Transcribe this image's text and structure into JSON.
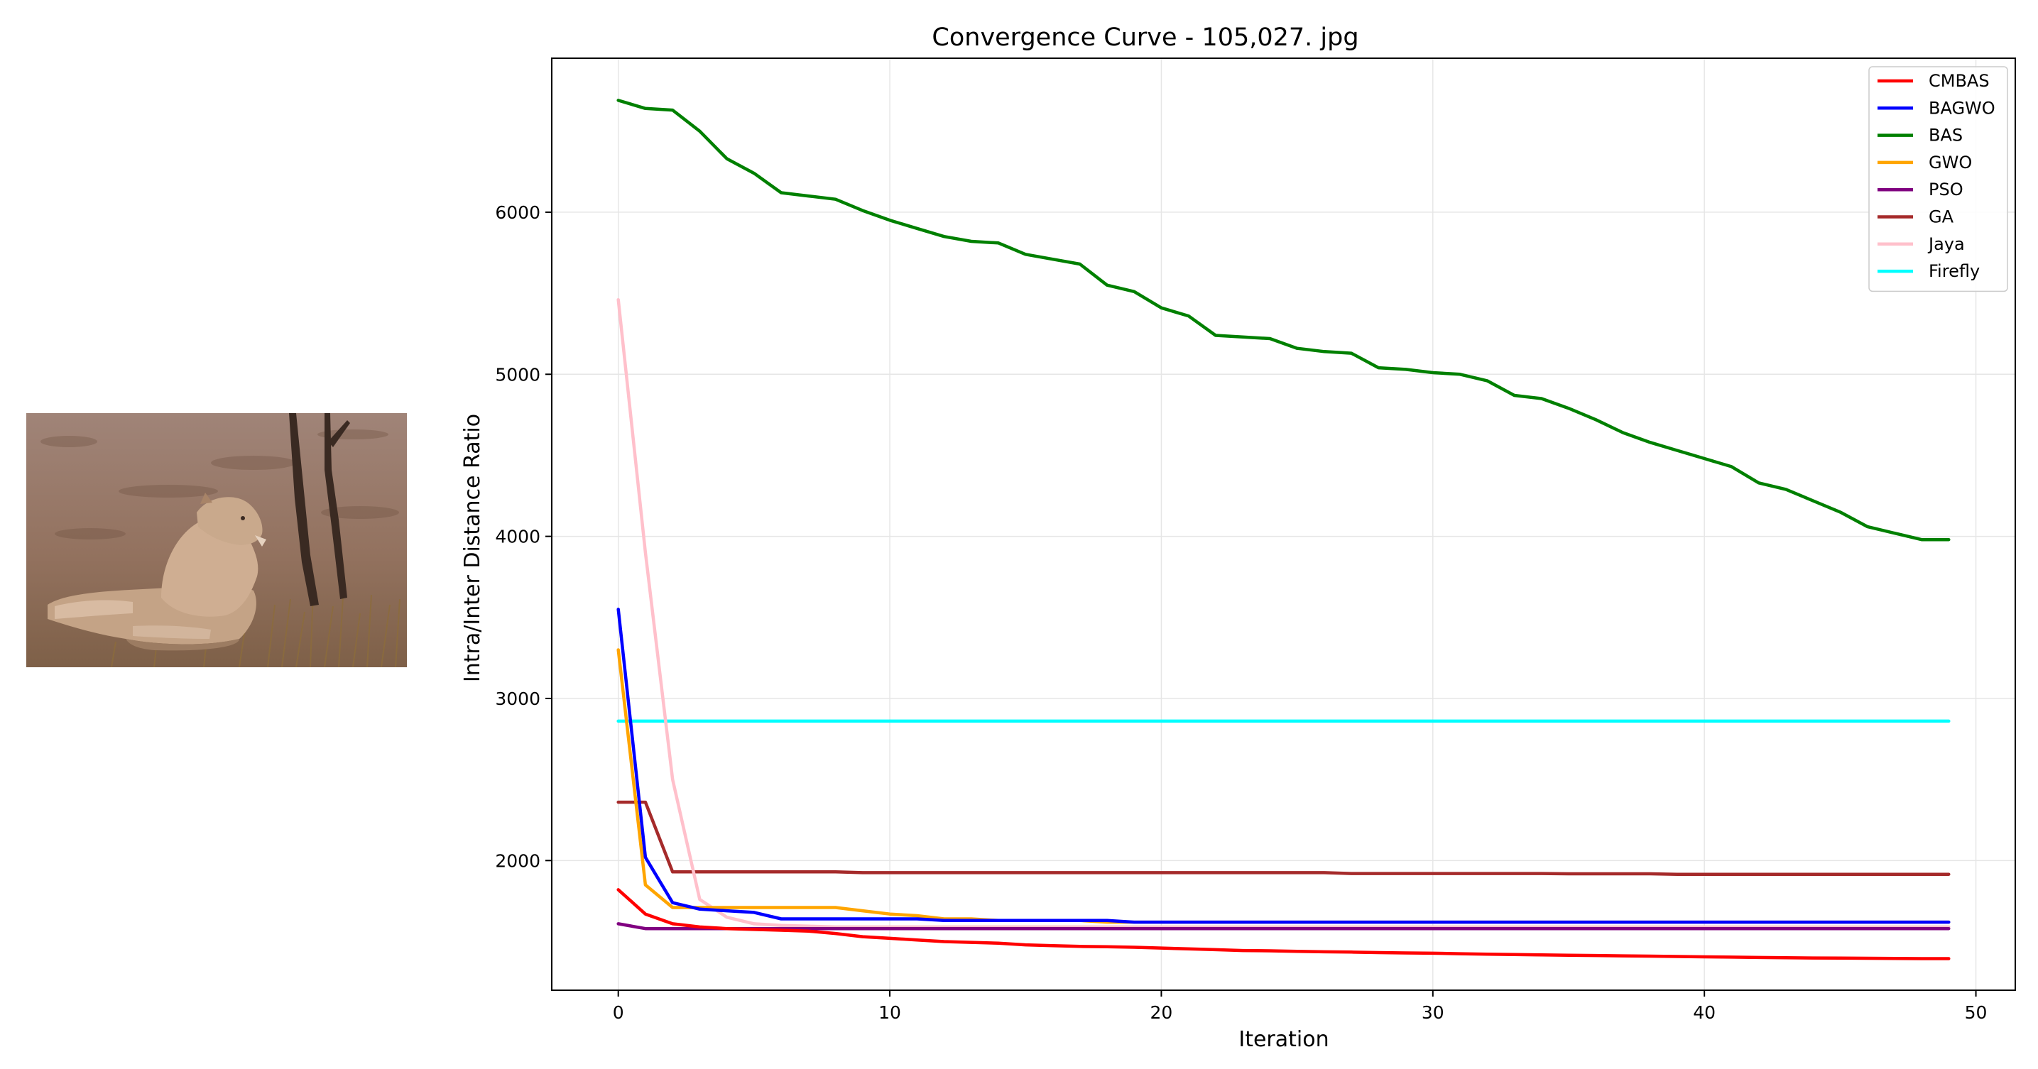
{
  "chart_data": {
    "type": "line",
    "title": "Convergence Curve - 105,027. jpg",
    "xlabel": "Iteration",
    "ylabel": "Intra/Inter Distance Ratio",
    "xlim": [
      -2.45,
      51.45
    ],
    "ylim": [
      1200,
      6950
    ],
    "xticks": [
      0,
      10,
      20,
      30,
      40,
      50
    ],
    "yticks": [
      2000,
      3000,
      4000,
      5000,
      6000
    ],
    "grid": true,
    "legend_position": "top-right",
    "x": [
      0,
      1,
      2,
      3,
      4,
      5,
      6,
      7,
      8,
      9,
      10,
      11,
      12,
      13,
      14,
      15,
      16,
      17,
      18,
      19,
      20,
      21,
      22,
      23,
      24,
      25,
      26,
      27,
      28,
      29,
      30,
      31,
      32,
      33,
      34,
      35,
      36,
      37,
      38,
      39,
      40,
      41,
      42,
      43,
      44,
      45,
      46,
      47,
      48,
      49
    ],
    "series": [
      {
        "name": "CMBAS",
        "color": "#ff0000",
        "values": [
          1820,
          1670,
          1610,
          1590,
          1580,
          1575,
          1570,
          1565,
          1550,
          1530,
          1520,
          1510,
          1500,
          1495,
          1490,
          1480,
          1475,
          1470,
          1468,
          1465,
          1460,
          1455,
          1450,
          1445,
          1443,
          1440,
          1437,
          1435,
          1432,
          1430,
          1428,
          1425,
          1422,
          1420,
          1418,
          1416,
          1414,
          1412,
          1410,
          1408,
          1406,
          1404,
          1402,
          1400,
          1399,
          1398,
          1397,
          1396,
          1395,
          1395
        ]
      },
      {
        "name": "BAGWO",
        "color": "#0000ff",
        "values": [
          3550,
          2020,
          1740,
          1700,
          1690,
          1680,
          1640,
          1640,
          1640,
          1640,
          1640,
          1640,
          1630,
          1630,
          1630,
          1630,
          1630,
          1630,
          1630,
          1620,
          1620,
          1620,
          1620,
          1620,
          1620,
          1620,
          1620,
          1620,
          1620,
          1620,
          1620,
          1620,
          1620,
          1620,
          1620,
          1620,
          1620,
          1620,
          1620,
          1620,
          1620,
          1620,
          1620,
          1620,
          1620,
          1620,
          1620,
          1620,
          1620,
          1620
        ]
      },
      {
        "name": "BAS",
        "color": "#008000",
        "values": [
          6690,
          6640,
          6630,
          6500,
          6330,
          6240,
          6120,
          6100,
          6080,
          6010,
          5950,
          5900,
          5850,
          5820,
          5810,
          5740,
          5710,
          5680,
          5550,
          5510,
          5410,
          5360,
          5240,
          5230,
          5220,
          5160,
          5140,
          5130,
          5040,
          5030,
          5010,
          5000,
          4960,
          4870,
          4850,
          4790,
          4720,
          4640,
          4580,
          4530,
          4480,
          4430,
          4330,
          4290,
          4220,
          4150,
          4060,
          4020,
          3980,
          3980
        ]
      },
      {
        "name": "GWO",
        "color": "#ffa500",
        "values": [
          3300,
          1850,
          1710,
          1710,
          1710,
          1710,
          1710,
          1710,
          1710,
          1690,
          1670,
          1660,
          1640,
          1640,
          1630,
          1630,
          1630,
          1630,
          1620,
          1620,
          1620,
          1620,
          1620,
          1620,
          1620,
          1620,
          1620,
          1620,
          1620,
          1620,
          1620,
          1620,
          1620,
          1620,
          1620,
          1620,
          1620,
          1620,
          1620,
          1620,
          1620,
          1620,
          1620,
          1620,
          1620,
          1620,
          1620,
          1620,
          1620,
          1620
        ]
      },
      {
        "name": "PSO",
        "color": "#800080",
        "values": [
          1610,
          1580,
          1580,
          1580,
          1580,
          1580,
          1580,
          1580,
          1580,
          1580,
          1580,
          1580,
          1580,
          1580,
          1580,
          1580,
          1580,
          1580,
          1580,
          1580,
          1580,
          1580,
          1580,
          1580,
          1580,
          1580,
          1580,
          1580,
          1580,
          1580,
          1580,
          1580,
          1580,
          1580,
          1580,
          1580,
          1580,
          1580,
          1580,
          1580,
          1580,
          1580,
          1580,
          1580,
          1580,
          1580,
          1580,
          1580,
          1580,
          1580
        ]
      },
      {
        "name": "GA",
        "color": "#a52a2a",
        "values": [
          2360,
          2360,
          1930,
          1930,
          1930,
          1930,
          1930,
          1930,
          1930,
          1925,
          1925,
          1925,
          1925,
          1925,
          1925,
          1925,
          1925,
          1925,
          1925,
          1925,
          1925,
          1925,
          1925,
          1925,
          1925,
          1925,
          1925,
          1920,
          1920,
          1920,
          1920,
          1920,
          1920,
          1920,
          1920,
          1918,
          1918,
          1918,
          1918,
          1915,
          1915,
          1915,
          1915,
          1915,
          1915,
          1915,
          1915,
          1915,
          1915,
          1915
        ]
      },
      {
        "name": "Jaya",
        "color": "#ffc0cb",
        "values": [
          5460,
          3900,
          2500,
          1760,
          1650,
          1610,
          1600,
          1595,
          1590,
          1590,
          1590,
          1590,
          1590,
          1590,
          1590,
          1590,
          1590,
          1590,
          1590,
          1590,
          1590,
          1590,
          1590,
          1590,
          1590,
          1590,
          1590,
          1590,
          1590,
          1590,
          1590,
          1590,
          1590,
          1590,
          1590,
          1590,
          1590,
          1590,
          1590,
          1590,
          1590,
          1590,
          1590,
          1590,
          1590,
          1590,
          1590,
          1590,
          1590,
          1590
        ]
      },
      {
        "name": "Firefly",
        "color": "#00ffff",
        "values": [
          2860,
          2860,
          2860,
          2860,
          2860,
          2860,
          2860,
          2860,
          2860,
          2860,
          2860,
          2860,
          2860,
          2860,
          2860,
          2860,
          2860,
          2860,
          2860,
          2860,
          2860,
          2860,
          2860,
          2860,
          2860,
          2860,
          2860,
          2860,
          2860,
          2860,
          2860,
          2860,
          2860,
          2860,
          2860,
          2860,
          2860,
          2860,
          2860,
          2860,
          2860,
          2860,
          2860,
          2860,
          2860,
          2860,
          2860,
          2860,
          2860,
          2860
        ]
      }
    ]
  },
  "photo": {
    "icon": "lioness-photo",
    "colors": {
      "ground": "#9a7868",
      "ground_dark": "#7a5a4c",
      "grass": "#8a6a3a",
      "lion": "#c9a98c",
      "lion_shadow": "#9c7c62",
      "tree": "#3a2a22"
    }
  }
}
